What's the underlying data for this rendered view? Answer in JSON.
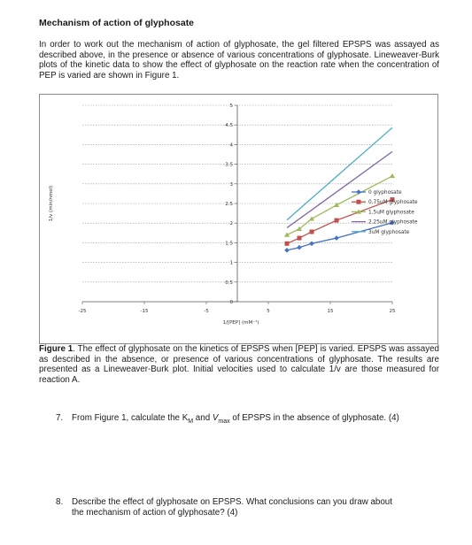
{
  "heading": "Mechanism of action of glyphosate",
  "intro": "In order to work out the mechanism of action of glyphosate, the gel filtered EPSPS was assayed as described above, in the presence or absence of various concentrations of glyphosate. Lineweaver-Burk plots of the kinetic data to show the effect of glyphosate on the reaction rate when the concentration of PEP is varied are shown in Figure 1.",
  "chart_data": {
    "type": "line",
    "title": "",
    "xlabel": "1/[PEP] (mM⁻¹)",
    "ylabel": "1/v (min/nmol)",
    "xlim": [
      -25,
      25
    ],
    "ylim": [
      0,
      5
    ],
    "x_ticks": [
      "-25",
      "-15",
      "-5",
      "5",
      "15",
      "25"
    ],
    "y_ticks": [
      "0",
      "0.5",
      "1",
      "1.5",
      "2",
      "2.5",
      "3",
      "3.5",
      "4",
      "4.5",
      "5"
    ],
    "grid": true,
    "legend_position": "right",
    "series": [
      {
        "name": "0 glyphosate",
        "color": "#4472c4",
        "marker": "diamond",
        "x": [
          8,
          10,
          12,
          16,
          25
        ],
        "y": [
          1.31,
          1.38,
          1.48,
          1.62,
          2.01
        ]
      },
      {
        "name": "0.75uM glyphosate",
        "color": "#c0504d",
        "marker": "square",
        "x": [
          8,
          10,
          12,
          16,
          25
        ],
        "y": [
          1.48,
          1.62,
          1.78,
          2.07,
          2.6
        ]
      },
      {
        "name": "1.5uM glyphosate",
        "color": "#9bbb59",
        "marker": "triangle",
        "x": [
          8,
          10,
          12,
          16,
          25
        ],
        "y": [
          1.7,
          1.85,
          2.11,
          2.46,
          3.2
        ]
      },
      {
        "name": "2.25uM glyphosate",
        "color": "#8064a2",
        "marker": "none",
        "x": [
          8,
          25
        ],
        "y": [
          1.88,
          3.82
        ]
      },
      {
        "name": "3uM glyphosate",
        "color": "#4bacc6",
        "marker": "none",
        "x": [
          8,
          25
        ],
        "y": [
          2.08,
          4.43
        ]
      }
    ]
  },
  "caption": {
    "label": "Figure 1",
    "text": ". The effect of glyphosate on the kinetics of EPSPS when [PEP] is varied. EPSPS was assayed as described in the absence, or presence of various concentrations of glyphosate. The results are presented as a Lineweaver-Burk plot. Initial velocities used to calculate 1/v are those measured for reaction A."
  },
  "questions": [
    {
      "number": "7.",
      "parts": [
        "From Figure 1, calculate the K",
        "M",
        " and ",
        "V",
        "max",
        " of EPSPS in the absence of glyphosate. (4)"
      ]
    },
    {
      "number": "8.",
      "line1": "Describe the effect of glyphosate on EPSPS. What conclusions can you draw about",
      "line2": "the mechanism of action of glyphosate? (4)"
    }
  ]
}
